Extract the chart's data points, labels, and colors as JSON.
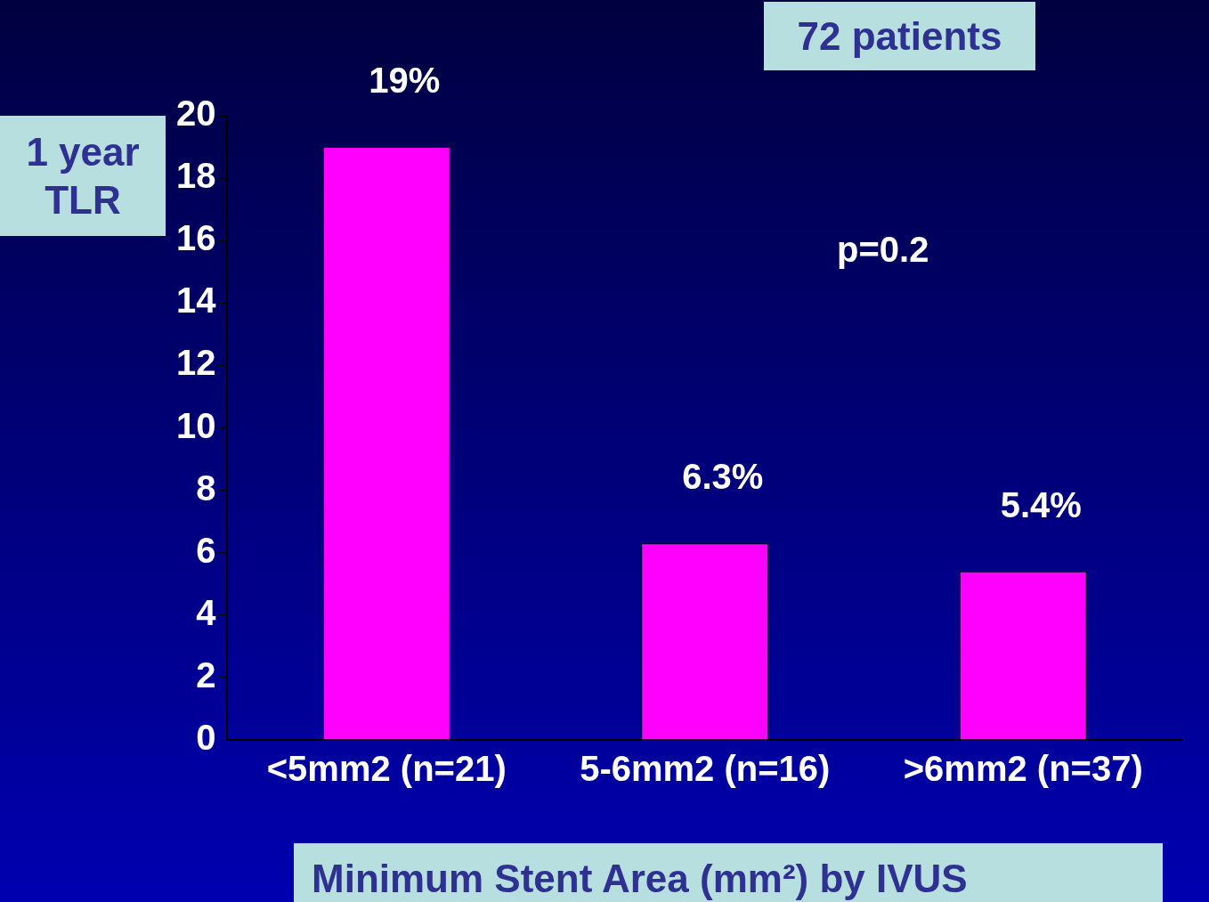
{
  "chart_data": {
    "type": "bar",
    "ylabel": "1 year TLR",
    "xlabel": "Minimum Stent Area (mm²) by IVUS",
    "categories": [
      "<5mm2 (n=21)",
      "5-6mm2 (n=16)",
      ">6mm2 (n=37)"
    ],
    "values": [
      19,
      6.3,
      5.4
    ],
    "value_labels": [
      "19%",
      "6.3%",
      "5.4%"
    ],
    "color": "#ff00ff",
    "ylim": [
      0,
      20
    ],
    "yticks": [
      0,
      2,
      4,
      6,
      8,
      10,
      12,
      14,
      16,
      18,
      20
    ],
    "grid": false,
    "legend": false,
    "annotations": [
      "72 patients",
      "p=0.2"
    ]
  }
}
